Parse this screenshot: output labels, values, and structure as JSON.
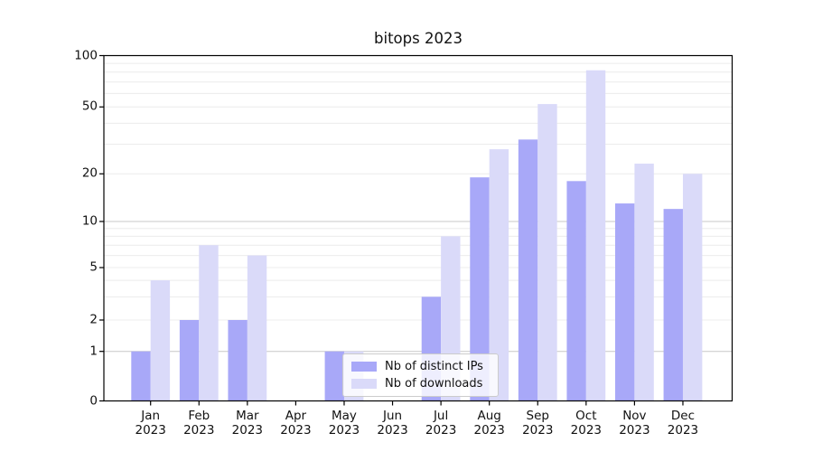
{
  "chart_data": {
    "type": "bar",
    "title": "bitops 2023",
    "year": "2023",
    "months": [
      "Jan",
      "Feb",
      "Mar",
      "Apr",
      "May",
      "Jun",
      "Jul",
      "Aug",
      "Sep",
      "Oct",
      "Nov",
      "Dec"
    ],
    "categories": [
      "Jan 2023",
      "Feb 2023",
      "Mar 2023",
      "Apr 2023",
      "May 2023",
      "Jun 2023",
      "Jul 2023",
      "Aug 2023",
      "Sep 2023",
      "Oct 2023",
      "Nov 2023",
      "Dec 2023"
    ],
    "series": [
      {
        "name": "Nb of distinct IPs",
        "color": "#a8a8f8",
        "values": [
          1,
          2,
          2,
          0,
          1,
          0,
          3,
          19,
          32,
          18,
          13,
          12
        ]
      },
      {
        "name": "Nb of downloads",
        "color": "#dadaf9",
        "values": [
          4,
          7,
          6,
          0,
          1,
          0,
          8,
          28,
          52,
          82,
          23,
          20
        ]
      }
    ],
    "yscale": "symlog",
    "ylim": [
      0,
      100
    ],
    "y_tick_labels": [
      "100",
      "50",
      "20",
      "10",
      "5",
      "2",
      "1",
      "0"
    ],
    "grid": true,
    "legend_position": "lower center inside"
  },
  "colors": {
    "bar_distinct_ips": "#a8a8f8",
    "bar_downloads": "#dadaf9",
    "grid_minor": "#ececec",
    "grid_major": "#c8c8c8",
    "axis": "#000000",
    "background": "#ffffff"
  }
}
